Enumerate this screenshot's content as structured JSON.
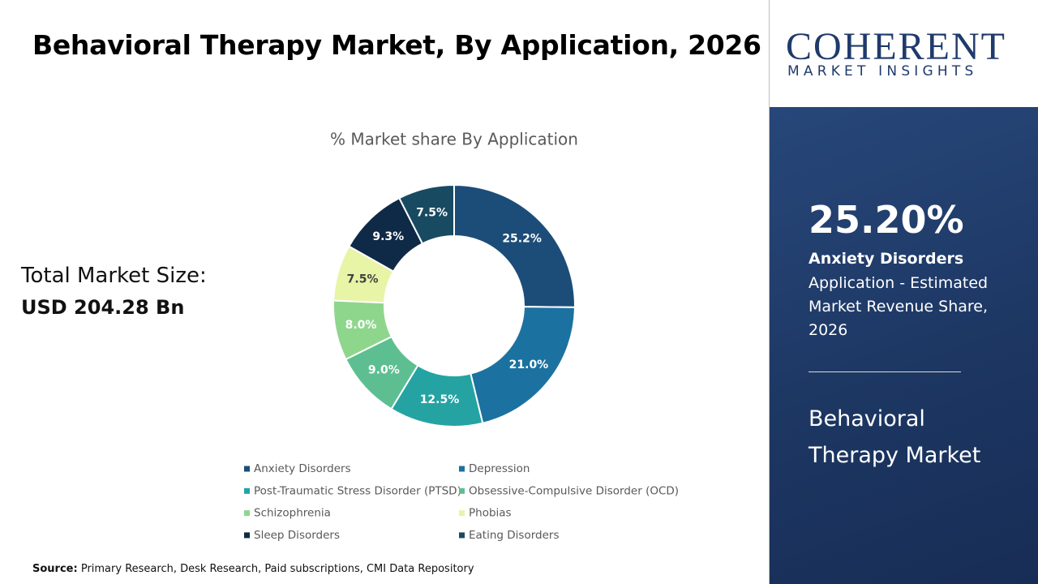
{
  "header": {
    "title": "Behavioral Therapy Market, By Application, 2026"
  },
  "market_size": {
    "label": "Total Market Size:",
    "value": "USD 204.28 Bn"
  },
  "chart_data": {
    "type": "donut",
    "title": "% Market share By Application",
    "categories": [
      "Anxiety Disorders",
      "Depression",
      "Post-Traumatic Stress Disorder (PTSD)",
      "Obsessive-Compulsive Disorder (OCD)",
      "Schizophrenia",
      "Phobias",
      "Sleep Disorders",
      "Eating Disorders"
    ],
    "values": [
      25.2,
      21.0,
      12.5,
      9.0,
      8.0,
      7.5,
      9.3,
      7.5
    ],
    "value_labels": [
      "25.2%",
      "21.0%",
      "12.5%",
      "9.0%",
      "8.0%",
      "7.5%",
      "9.3%",
      "7.5%"
    ],
    "colors": [
      "#1c4d78",
      "#1b72a0",
      "#25a3a3",
      "#5dbf91",
      "#8fd68d",
      "#e8f4a6",
      "#0f2a47",
      "#184a62"
    ],
    "legend": "bottom"
  },
  "highlight": {
    "value": "25.20%",
    "segment": "Anxiety Disorders",
    "description": "Application - Estimated Market Revenue Share, 2026",
    "market": "Behavioral Therapy Market"
  },
  "logo": {
    "name": "COHERENT",
    "tagline": "MARKET INSIGHTS"
  },
  "source": {
    "label": "Source:",
    "text": "Primary Research, Desk Research, Paid subscriptions, CMI Data Repository"
  }
}
